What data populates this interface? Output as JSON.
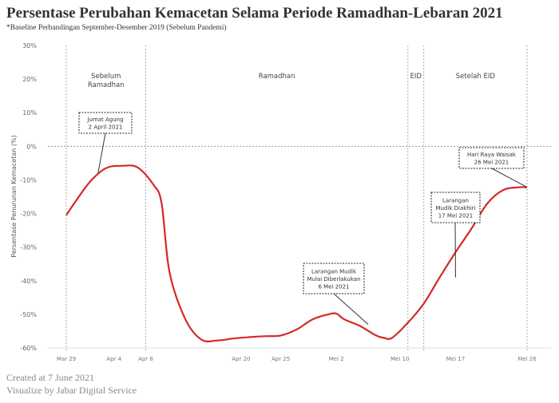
{
  "title": "Persentase Perubahan Kemacetan Selama Periode Ramadhan-Lebaran 2021",
  "subtitle": "*Baseline Perbandingan September-Desember 2019 (Sebelum Pandemi)",
  "footer": {
    "created": "Created at 7 June 2021",
    "credit": "Visualize by Jabar Digital Service"
  },
  "chart_data": {
    "type": "line",
    "title": "Persentase Perubahan Kemacetan Selama Periode Ramadhan-Lebaran 2021",
    "ylabel": "Persentase Penurunan Kemacetan (%)",
    "ylim": [
      -60,
      30
    ],
    "yticks": [
      30,
      20,
      10,
      0,
      -10,
      -20,
      -30,
      -40,
      -50,
      -60
    ],
    "ytick_labels": [
      "30%",
      "20%",
      "10%",
      "0%",
      "-10%",
      "-20%",
      "-30%",
      "-40%",
      "-50%",
      "-60%"
    ],
    "xtick_labels": [
      {
        "day": 0,
        "label": "Mar 29"
      },
      {
        "day": 6,
        "label": "Apr 4"
      },
      {
        "day": 10,
        "label": "Apr 8"
      },
      {
        "day": 22,
        "label": "Apr 20"
      },
      {
        "day": 27,
        "label": "Apr 25"
      },
      {
        "day": 34,
        "label": "Mei 2"
      },
      {
        "day": 42,
        "label": "Mei 10"
      },
      {
        "day": 49,
        "label": "Mei 17"
      },
      {
        "day": 58,
        "label": "Mei 26"
      }
    ],
    "grid": "dotted",
    "line_color": "#d62728",
    "series": [
      {
        "x": [
          0,
          1,
          3,
          5,
          7,
          9,
          11,
          12,
          13,
          15,
          17,
          19,
          21,
          23,
          25,
          27,
          29,
          31,
          33,
          34,
          35,
          37,
          39,
          40,
          41,
          43,
          45,
          47,
          49,
          51,
          53,
          55,
          57,
          58
        ],
        "y": [
          -20.5,
          -17,
          -10.5,
          -6.5,
          -5.8,
          -6.3,
          -11.5,
          -17,
          -37.5,
          -51.5,
          -57.5,
          -57.8,
          -57.2,
          -56.8,
          -56.5,
          -56.3,
          -54.5,
          -51.5,
          -50,
          -49.8,
          -51.5,
          -53.5,
          -56.3,
          -57,
          -57,
          -52.5,
          -46.8,
          -39,
          -31.5,
          -24.5,
          -17,
          -13,
          -12.2,
          -12.2
        ]
      }
    ],
    "periods": [
      {
        "label": "Sebelum\nRamadhan",
        "start_day": 0,
        "end_day": 10
      },
      {
        "label": "Ramadhan",
        "start_day": 10,
        "end_day": 43
      },
      {
        "label": "EID",
        "start_day": 43,
        "end_day": 45
      },
      {
        "label": "Setelah EID",
        "start_day": 45,
        "end_day": 58
      }
    ],
    "annotations": [
      {
        "text": "Jumat Agung\n2 April 2021",
        "day": 4,
        "value": -8
      },
      {
        "text": "Larangan Mudik\nMulai Diberlakukan\n6 Mei 2021",
        "day": 38,
        "value": -53
      },
      {
        "text": "Larangan\nMudik Diakhiri\n17 Mei 2021",
        "day": 49,
        "value": -39
      },
      {
        "text": "Hari Raya Waisak\n26 Mei 2021",
        "day": 58,
        "value": -12.2
      }
    ]
  }
}
